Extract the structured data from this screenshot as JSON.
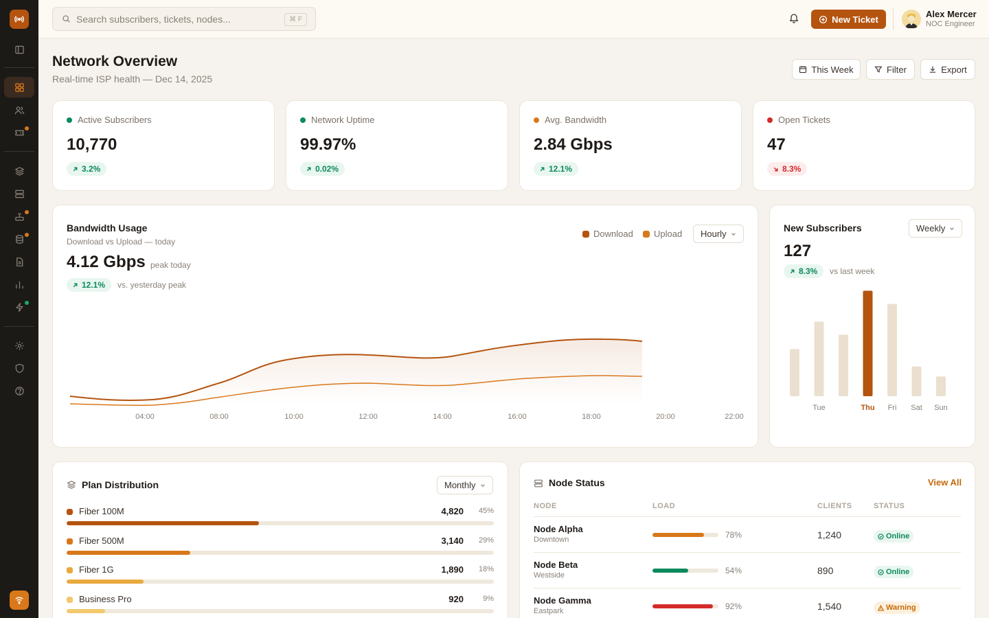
{
  "search": {
    "placeholder": "Search subscribers, tickets, nodes...",
    "shortcut": "⌘ F"
  },
  "topbar": {
    "new_ticket_label": "New Ticket",
    "user_name": "Alex Mercer",
    "user_role": "NOC Engineer"
  },
  "header": {
    "title": "Network Overview",
    "subtitle": "Real-time ISP health — Dec 14, 2025",
    "buttons": {
      "this_week": "This Week",
      "filter": "Filter",
      "export": "Export"
    }
  },
  "kpis": [
    {
      "label": "Active Subscribers",
      "value": "10,770",
      "delta": "3.2%",
      "trend": "up",
      "color": "#0c8a5d"
    },
    {
      "label": "Network Uptime",
      "value": "99.97%",
      "delta": "0.02%",
      "trend": "up",
      "color": "#0c8a5d"
    },
    {
      "label": "Avg. Bandwidth",
      "value": "2.84 Gbps",
      "delta": "12.1%",
      "trend": "up",
      "color": "#d9781a"
    },
    {
      "label": "Open Tickets",
      "value": "47",
      "delta": "8.3%",
      "trend": "down",
      "color": "#d42a2a"
    }
  ],
  "bandwidth": {
    "title": "Bandwidth Usage",
    "subtitle": "Download vs Upload — today",
    "peak_value": "4.12 Gbps",
    "peak_label": "peak today",
    "delta": "12.1%",
    "delta_note": "vs. yesterday peak",
    "legend": {
      "download": "Download",
      "upload": "Upload"
    },
    "range_select": "Hourly",
    "x_ticks": [
      "04:00",
      "08:00",
      "10:00",
      "12:00",
      "14:00",
      "16:00",
      "18:00",
      "20:00",
      "22:00"
    ],
    "colors": {
      "download": "#b4540f",
      "upload": "#d9781a"
    }
  },
  "new_subscribers": {
    "title": "New Subscribers",
    "range_select": "Weekly",
    "value": "127",
    "delta": "8.3%",
    "delta_note": "vs last week",
    "days": [
      {
        "label": "",
        "value": 43,
        "highlight": false
      },
      {
        "label": "Tue",
        "value": 68,
        "highlight": false
      },
      {
        "label": "",
        "value": 56,
        "highlight": false
      },
      {
        "label": "Thu",
        "value": 96,
        "highlight": true
      },
      {
        "label": "Fri",
        "value": 84,
        "highlight": false
      },
      {
        "label": "Sat",
        "value": 27,
        "highlight": false
      },
      {
        "label": "Sun",
        "value": 18,
        "highlight": false
      }
    ],
    "colors": {
      "bar": "#ebe0cf",
      "highlight": "#b4540f"
    }
  },
  "plan_distribution": {
    "title": "Plan Distribution",
    "range_select": "Monthly",
    "plans": [
      {
        "name": "Fiber 100M",
        "count": "4,820",
        "pct": "45%",
        "fraction": 0.45,
        "color": "#b4540f"
      },
      {
        "name": "Fiber 500M",
        "count": "3,140",
        "pct": "29%",
        "fraction": 0.29,
        "color": "#d9781a"
      },
      {
        "name": "Fiber 1G",
        "count": "1,890",
        "pct": "18%",
        "fraction": 0.18,
        "color": "#e9a93e"
      },
      {
        "name": "Business Pro",
        "count": "920",
        "pct": "9%",
        "fraction": 0.09,
        "color": "#f2c96d"
      }
    ]
  },
  "node_status": {
    "title": "Node Status",
    "view_all": "View All",
    "columns": {
      "node": "NODE",
      "load": "LOAD",
      "clients": "CLIENTS",
      "status": "STATUS"
    },
    "rows": [
      {
        "name": "Node Alpha",
        "location": "Downtown",
        "load": 0.78,
        "load_label": "78%",
        "clients": "1,240",
        "status": "Online",
        "state": "online",
        "bar_color": "#d9781a"
      },
      {
        "name": "Node Beta",
        "location": "Westside",
        "load": 0.54,
        "load_label": "54%",
        "clients": "890",
        "status": "Online",
        "state": "online",
        "bar_color": "#0c8a5d"
      },
      {
        "name": "Node Gamma",
        "location": "Eastpark",
        "load": 0.92,
        "load_label": "92%",
        "clients": "1,540",
        "status": "Warning",
        "state": "warning",
        "bar_color": "#d42a2a"
      }
    ]
  }
}
